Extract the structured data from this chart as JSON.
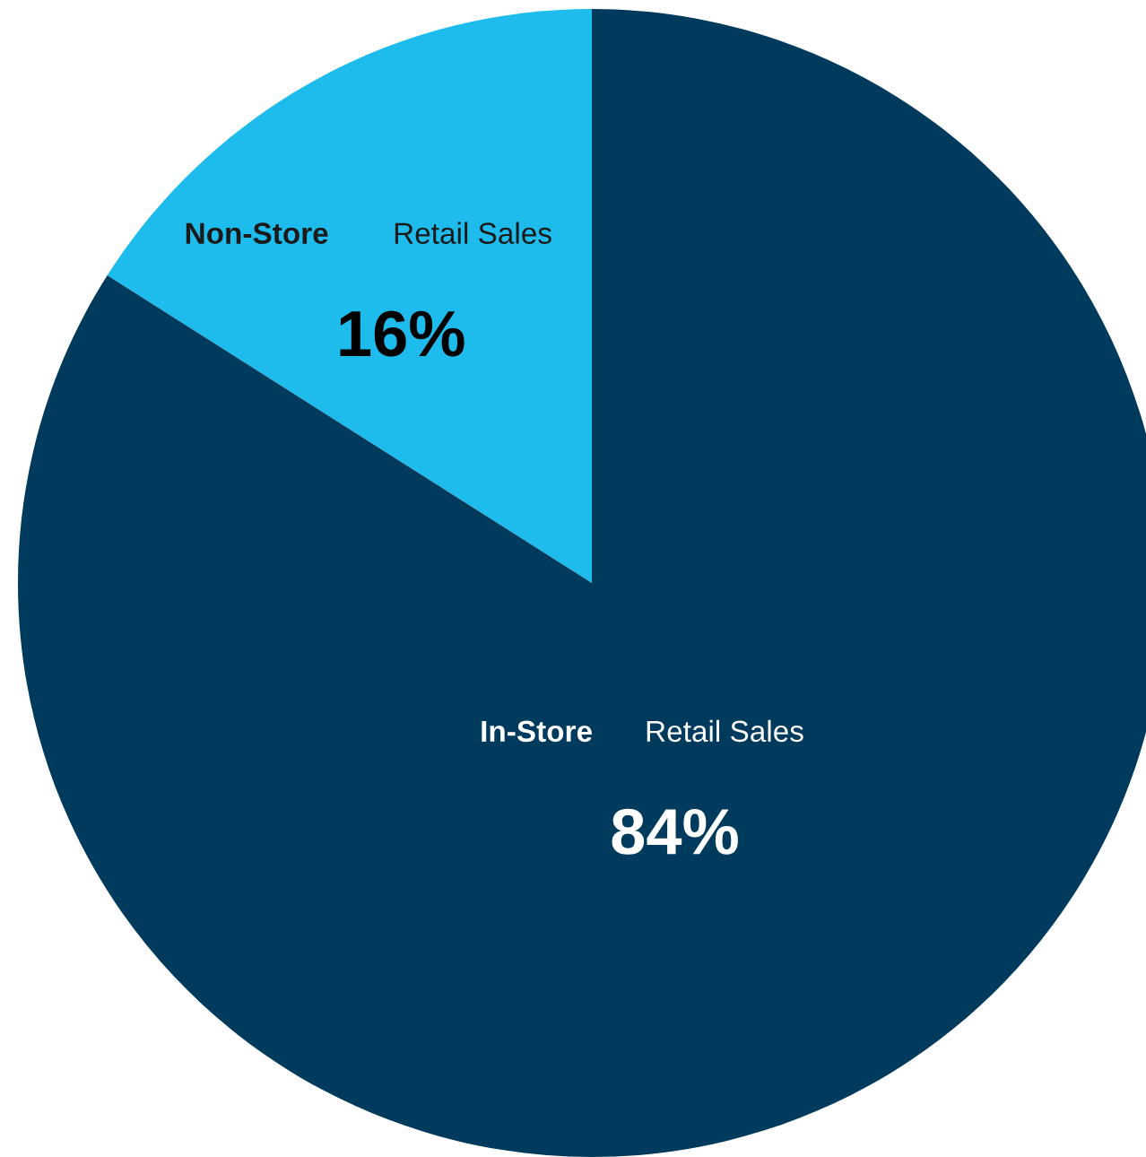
{
  "chart_data": {
    "type": "pie",
    "categories": [
      "Non-Store Retail Sales",
      "In-Store Retail Sales"
    ],
    "values": [
      16,
      84
    ],
    "colors": [
      "#1ebcec",
      "#003a5d"
    ],
    "value_labels": [
      "16%",
      "84%"
    ]
  }
}
